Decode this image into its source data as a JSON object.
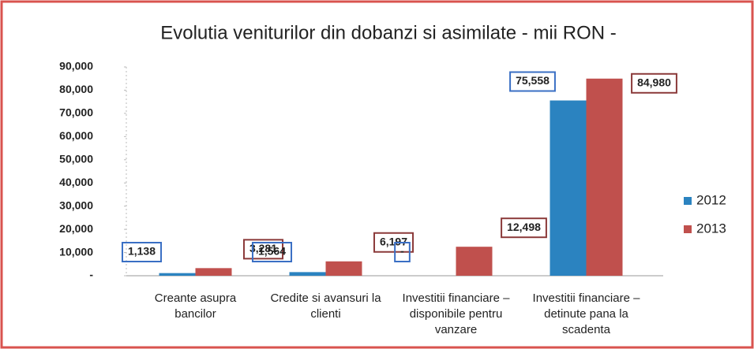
{
  "chart_data": {
    "type": "bar",
    "title": "Evolutia veniturilor din dobanzi si asimilate  - mii RON -",
    "categories": [
      "Creante asupra bancilor",
      "Credite si avansuri la clienti",
      "Investitii financiare – disponibile pentru vanzare",
      "Investitii financiare – detinute pana la scadenta"
    ],
    "series": [
      {
        "name": "2012",
        "color": "#2b83c0",
        "values": [
          1138,
          1564,
          0,
          75558
        ],
        "value_labels": [
          "1,138",
          "1,564",
          "-",
          "75,558"
        ]
      },
      {
        "name": "2013",
        "color": "#c0504d",
        "values": [
          3281,
          6197,
          12498,
          84980
        ],
        "value_labels": [
          "3,281",
          "6,197",
          "12,498",
          "84,980"
        ]
      }
    ],
    "ylim": [
      0,
      90000
    ],
    "yticks": [
      {
        "value": 0,
        "label": "-"
      },
      {
        "value": 10000,
        "label": "10,000"
      },
      {
        "value": 20000,
        "label": "20,000"
      },
      {
        "value": 30000,
        "label": "30,000"
      },
      {
        "value": 40000,
        "label": "40,000"
      },
      {
        "value": 50000,
        "label": "50,000"
      },
      {
        "value": 60000,
        "label": "60,000"
      },
      {
        "value": 70000,
        "label": "70,000"
      },
      {
        "value": 80000,
        "label": "80,000"
      },
      {
        "value": 90000,
        "label": "90,000"
      }
    ],
    "legend": "right"
  }
}
